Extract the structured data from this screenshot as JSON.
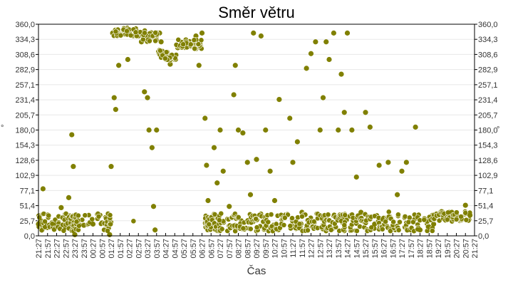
{
  "chart_data": {
    "type": "scatter",
    "title": "Směr větru",
    "xlabel": "Čas",
    "ylabel": "°",
    "ylim": [
      0,
      360
    ],
    "yticks": [
      "0,0",
      "25,7",
      "51,4",
      "77,1",
      "102,9",
      "128,6",
      "154,3",
      "180,0",
      "205,7",
      "231,4",
      "257,1",
      "282,9",
      "308,6",
      "334,3",
      "360,0"
    ],
    "ytick_values": [
      0,
      25.7,
      51.4,
      77.1,
      102.9,
      128.6,
      154.3,
      180.0,
      205.7,
      231.4,
      257.1,
      282.9,
      308.6,
      334.3,
      360.0
    ],
    "xticks": [
      "21:27",
      "21:57",
      "22:27",
      "22:57",
      "23:27",
      "23:57",
      "00:27",
      "00:57",
      "01:27",
      "01:57",
      "02:27",
      "02:57",
      "03:27",
      "03:57",
      "04:27",
      "04:57",
      "05:27",
      "05:57",
      "06:27",
      "06:57",
      "07:27",
      "07:57",
      "08:27",
      "08:57",
      "09:27",
      "09:57",
      "10:27",
      "10:57",
      "11:27",
      "11:57",
      "12:27",
      "12:57",
      "13:27",
      "13:57",
      "14:27",
      "14:57",
      "15:27",
      "15:57",
      "16:27",
      "16:57",
      "17:27",
      "17:57",
      "18:27",
      "18:57",
      "19:27",
      "19:57",
      "20:27",
      "20:57",
      "21:27"
    ],
    "grid": true,
    "legend": "none",
    "marker_color": "#808000",
    "series": [
      {
        "name": "Směr větru",
        "points_approx": [
          [
            "21:27",
            20
          ],
          [
            "21:37",
            25
          ],
          [
            "21:42",
            80
          ],
          [
            "21:57",
            18
          ],
          [
            "22:12",
            22
          ],
          [
            "22:27",
            20
          ],
          [
            "22:42",
            48
          ],
          [
            "22:57",
            15
          ],
          [
            "23:07",
            65
          ],
          [
            "23:17",
            172
          ],
          [
            "23:22",
            118
          ],
          [
            "23:27",
            2
          ],
          [
            "23:37",
            25
          ],
          [
            "23:57",
            18
          ],
          [
            "00:27",
            20
          ],
          [
            "00:57",
            22
          ],
          [
            "01:12",
            10
          ],
          [
            "01:22",
            2
          ],
          [
            "01:27",
            118
          ],
          [
            "01:32",
            345
          ],
          [
            "01:37",
            235
          ],
          [
            "01:42",
            215
          ],
          [
            "01:47",
            340
          ],
          [
            "01:52",
            290
          ],
          [
            "02:07",
            350
          ],
          [
            "02:22",
            300
          ],
          [
            "02:27",
            345
          ],
          [
            "02:57",
            340
          ],
          [
            "03:07",
            330
          ],
          [
            "03:17",
            245
          ],
          [
            "03:27",
            235
          ],
          [
            "03:32",
            180
          ],
          [
            "03:42",
            150
          ],
          [
            "03:47",
            50
          ],
          [
            "03:52",
            10
          ],
          [
            "03:57",
            180
          ],
          [
            "04:07",
            345
          ],
          [
            "04:12",
            330
          ],
          [
            "04:27",
            300
          ],
          [
            "04:42",
            292
          ],
          [
            "04:57",
            300
          ],
          [
            "05:07",
            320
          ],
          [
            "05:27",
            325
          ],
          [
            "05:57",
            330
          ],
          [
            "06:07",
            340
          ],
          [
            "06:17",
            290
          ],
          [
            "06:27",
            345
          ],
          [
            "06:37",
            200
          ],
          [
            "06:42",
            120
          ],
          [
            "06:47",
            60
          ],
          [
            "06:57",
            30
          ],
          [
            "07:07",
            150
          ],
          [
            "07:17",
            90
          ],
          [
            "07:27",
            180
          ],
          [
            "07:37",
            110
          ],
          [
            "07:57",
            50
          ],
          [
            "08:12",
            240
          ],
          [
            "08:17",
            290
          ],
          [
            "08:27",
            180
          ],
          [
            "08:42",
            175
          ],
          [
            "08:57",
            125
          ],
          [
            "09:07",
            70
          ],
          [
            "09:17",
            345
          ],
          [
            "09:27",
            130
          ],
          [
            "09:42",
            340
          ],
          [
            "09:57",
            180
          ],
          [
            "10:12",
            110
          ],
          [
            "10:27",
            60
          ],
          [
            "10:42",
            232
          ],
          [
            "10:57",
            30
          ],
          [
            "11:17",
            200
          ],
          [
            "11:27",
            125
          ],
          [
            "11:42",
            160
          ],
          [
            "11:57",
            40
          ],
          [
            "12:12",
            285
          ],
          [
            "12:27",
            310
          ],
          [
            "12:42",
            330
          ],
          [
            "12:57",
            180
          ],
          [
            "13:07",
            235
          ],
          [
            "13:17",
            330
          ],
          [
            "13:27",
            300
          ],
          [
            "13:42",
            345
          ],
          [
            "13:57",
            180
          ],
          [
            "14:07",
            275
          ],
          [
            "14:17",
            210
          ],
          [
            "14:27",
            345
          ],
          [
            "14:42",
            180
          ],
          [
            "14:57",
            100
          ],
          [
            "15:12",
            40
          ],
          [
            "15:27",
            210
          ],
          [
            "15:42",
            185
          ],
          [
            "15:57",
            20
          ],
          [
            "16:12",
            120
          ],
          [
            "16:27",
            30
          ],
          [
            "16:42",
            125
          ],
          [
            "16:57",
            15
          ],
          [
            "17:12",
            70
          ],
          [
            "17:27",
            110
          ],
          [
            "17:42",
            125
          ],
          [
            "17:57",
            10
          ],
          [
            "18:12",
            185
          ],
          [
            "18:27",
            10
          ],
          [
            "18:57",
            15
          ],
          [
            "19:12",
            20
          ],
          [
            "19:27",
            35
          ],
          [
            "19:42",
            40
          ],
          [
            "19:57",
            30
          ],
          [
            "20:12",
            40
          ],
          [
            "20:27",
            35
          ],
          [
            "20:42",
            30
          ],
          [
            "20:57",
            52
          ],
          [
            "21:12",
            35
          ],
          [
            "21:27",
            20
          ]
        ]
      }
    ]
  }
}
